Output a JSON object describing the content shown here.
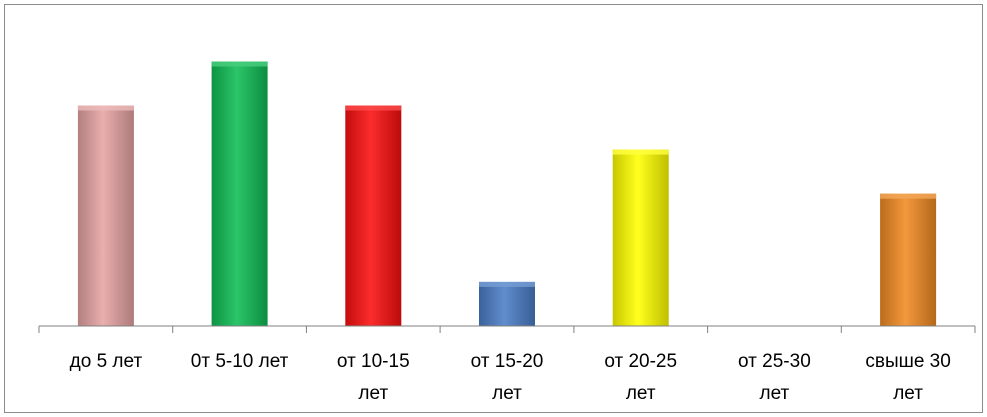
{
  "chart_data": {
    "type": "bar",
    "categories": [
      [
        "до 5 лет"
      ],
      [
        "0т 5-10 лет"
      ],
      [
        "от 10-15",
        "лет"
      ],
      [
        "от 15-20",
        "лет"
      ],
      [
        "от 20-25",
        "лет"
      ],
      [
        "от 25-30",
        "лет"
      ],
      [
        "свыше 30",
        "лет"
      ]
    ],
    "values": [
      5,
      6,
      5,
      1,
      4,
      0,
      3
    ],
    "colors": [
      "#e6a3a3",
      "#0fbd55",
      "#fb0f0f",
      "#4a7dc6",
      "#ffff00",
      "#cccccc",
      "#f08a22"
    ],
    "ylim": [
      0,
      6.6
    ],
    "grid": false,
    "title": "",
    "xlabel": "",
    "ylabel": ""
  }
}
